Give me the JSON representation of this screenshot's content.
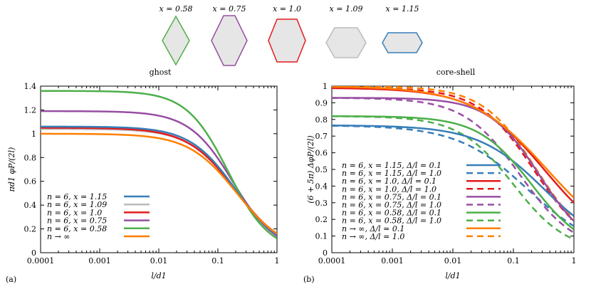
{
  "shapes": [
    {
      "label": "x = 0.58",
      "color": "#4daf4a"
    },
    {
      "label": "x = 0.75",
      "color": "#984ea3"
    },
    {
      "label": "x = 1.0",
      "color": "#e41a1c"
    },
    {
      "label": "x = 1.09",
      "color": "#bbbbbb"
    },
    {
      "label": "x = 1.15",
      "color": "#377eb8"
    }
  ],
  "chart_data": [
    {
      "type": "line",
      "panel_label": "(a)",
      "title": "ghost",
      "xlabel": "l/d1",
      "ylabel": "πd1 φP/(2l)",
      "xscale": "log",
      "xlim": [
        0.0001,
        1
      ],
      "ylim": [
        0,
        1.4
      ],
      "xticks": [
        "0.0001",
        "0.001",
        "0.01",
        "0.1",
        "1"
      ],
      "yticks": [
        "0",
        "0.2",
        "0.4",
        "0.6",
        "0.8",
        "1",
        "1.2",
        "1.4"
      ],
      "legend_position": "bottom-left",
      "series": [
        {
          "name": "n = 6, x = 1.15",
          "color": "#377eb8",
          "dashed": false,
          "plateau": 1.06,
          "x50": 0.2,
          "end": 0.15
        },
        {
          "name": "n = 6, x = 1.09",
          "color": "#bbbbbb",
          "dashed": false,
          "plateau": 1.04,
          "x50": 0.2,
          "end": 0.15
        },
        {
          "name": "n = 6, x = 1.0",
          "color": "#e41a1c",
          "dashed": false,
          "plateau": 1.05,
          "x50": 0.2,
          "end": 0.16
        },
        {
          "name": "n = 6, x = 0.75",
          "color": "#984ea3",
          "dashed": false,
          "plateau": 1.19,
          "x50": 0.18,
          "end": 0.14
        },
        {
          "name": "n = 6, x = 0.58",
          "color": "#4daf4a",
          "dashed": false,
          "plateau": 1.36,
          "x50": 0.15,
          "end": 0.12
        },
        {
          "name": "n → ∞",
          "color": "#ff7f00",
          "dashed": false,
          "plateau": 1.0,
          "x50": 0.21,
          "end": 0.16
        }
      ]
    },
    {
      "type": "line",
      "panel_label": "(b)",
      "title": "core-shell",
      "xlabel": "l/d1",
      "ylabel": "(6 + 5π) ΔφP/(2l)",
      "xscale": "log",
      "xlim": [
        0.0001,
        1
      ],
      "ylim": [
        0,
        1
      ],
      "xticks": [
        "0.0001",
        "0.001",
        "0.01",
        "0.1",
        "1"
      ],
      "yticks": [
        "0",
        "0.1",
        "0.2",
        "0.3",
        "0.4",
        "0.5",
        "0.6",
        "0.7",
        "0.8",
        "0.9",
        "1"
      ],
      "legend_position": "bottom-left",
      "series": [
        {
          "name": "n = 6, x = 1.15, Δ/l = 0.1",
          "color": "#377eb8",
          "dashed": false,
          "plateau": 0.765,
          "x50": 0.32,
          "end": 0.22
        },
        {
          "name": "n = 6, x = 1.15, Δ/l = 1.0",
          "color": "#377eb8",
          "dashed": true,
          "plateau": 0.765,
          "x50": 0.17,
          "end": 0.16
        },
        {
          "name": "n = 6, x = 1.0, Δ/l = 0.1",
          "color": "#e41a1c",
          "dashed": false,
          "plateau": 0.99,
          "x50": 0.33,
          "end": 0.3
        },
        {
          "name": "n = 6, x = 1.0, Δ/l = 1.0",
          "color": "#e41a1c",
          "dashed": true,
          "plateau": 0.99,
          "x50": 0.22,
          "end": 0.19
        },
        {
          "name": "n = 6, x = 0.75, Δ/l = 0.1",
          "color": "#984ea3",
          "dashed": false,
          "plateau": 0.93,
          "x50": 0.27,
          "end": 0.19
        },
        {
          "name": "n = 6, x = 0.75, Δ/l = 1.0",
          "color": "#984ea3",
          "dashed": true,
          "plateau": 0.93,
          "x50": 0.13,
          "end": 0.12
        },
        {
          "name": "n = 6, x = 0.58, Δ/l = 0.1",
          "color": "#4daf4a",
          "dashed": false,
          "plateau": 0.82,
          "x50": 0.2,
          "end": 0.14
        },
        {
          "name": "n = 6, x = 0.58, Δ/l = 1.0",
          "color": "#4daf4a",
          "dashed": true,
          "plateau": 0.82,
          "x50": 0.1,
          "end": 0.08
        },
        {
          "name": "n → ∞, Δ/l = 0.1",
          "color": "#ff7f00",
          "dashed": false,
          "plateau": 1.0,
          "x50": 0.36,
          "end": 0.33
        },
        {
          "name": "n → ∞, Δ/l = 1.0",
          "color": "#ff7f00",
          "dashed": true,
          "plateau": 1.0,
          "x50": 0.24,
          "end": 0.2
        }
      ]
    }
  ]
}
